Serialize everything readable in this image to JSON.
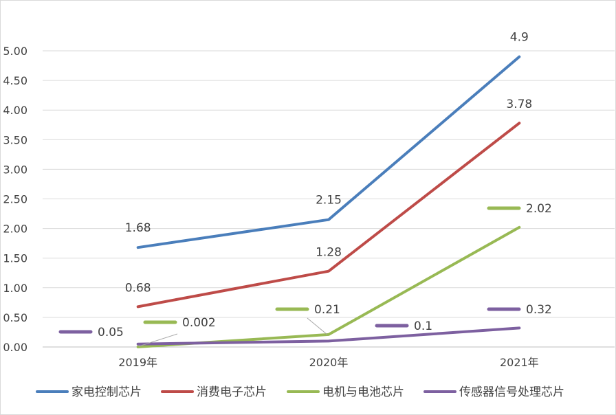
{
  "chart_data": {
    "type": "line",
    "categories": [
      "2019年",
      "2020年",
      "2021年"
    ],
    "yticks": [
      "0.00",
      "0.50",
      "1.00",
      "1.50",
      "2.00",
      "2.50",
      "3.00",
      "3.50",
      "4.00",
      "4.50",
      "5.00"
    ],
    "ylim": [
      0,
      5
    ],
    "grid": true,
    "legend_position": "bottom",
    "series": [
      {
        "name": "家电控制芯片",
        "color": "#4a7ebb",
        "values": [
          1.68,
          2.15,
          4.9
        ],
        "labels": [
          "1.68",
          "2.15",
          "4.9"
        ]
      },
      {
        "name": "消费电子芯片",
        "color": "#be4b48",
        "values": [
          0.68,
          1.28,
          3.78
        ],
        "labels": [
          "0.68",
          "1.28",
          "3.78"
        ]
      },
      {
        "name": "电机与电池芯片",
        "color": "#98b954",
        "values": [
          0.002,
          0.21,
          2.02
        ],
        "labels": [
          "0.002",
          "0.21",
          "2.02"
        ]
      },
      {
        "name": "传感器信号处理芯片",
        "color": "#7d60a0",
        "values": [
          0.05,
          0.1,
          0.32
        ],
        "labels": [
          "0.05",
          "0.1",
          "0.32"
        ]
      }
    ]
  }
}
